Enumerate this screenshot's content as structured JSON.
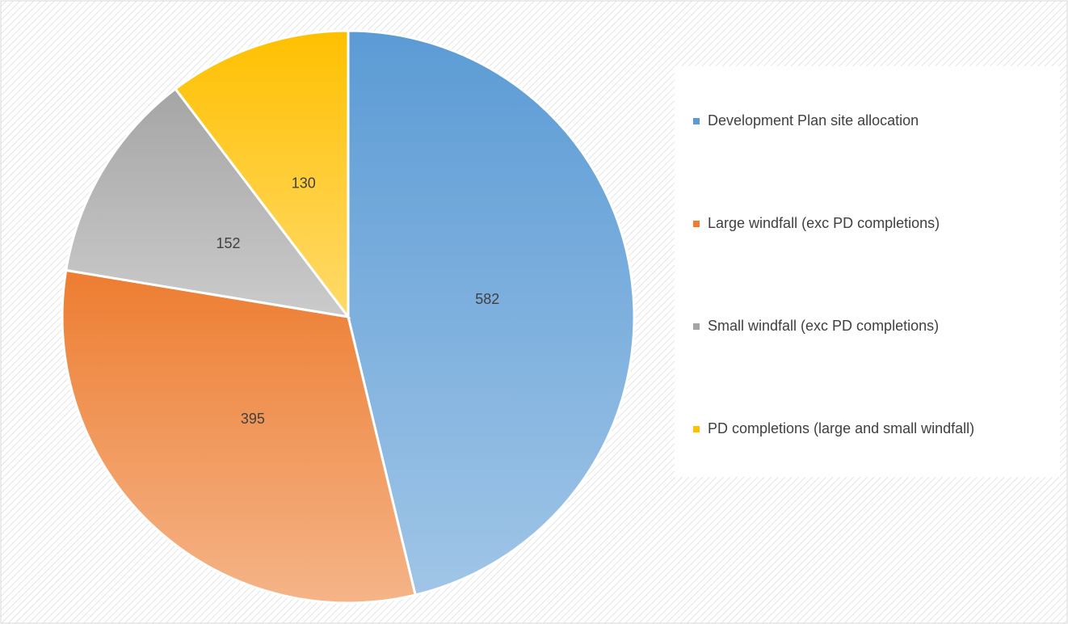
{
  "chart_data": {
    "type": "pie",
    "categories": [
      "Development Plan site allocation",
      "Large windfall (exc PD completions)",
      "Small windfall (exc PD completions)",
      "PD completions (large and small windfall)"
    ],
    "values": [
      582,
      395,
      152,
      130
    ],
    "colors": [
      "#5b9bd5",
      "#ed7d31",
      "#a5a5a5",
      "#ffc000"
    ],
    "legend": "right"
  }
}
